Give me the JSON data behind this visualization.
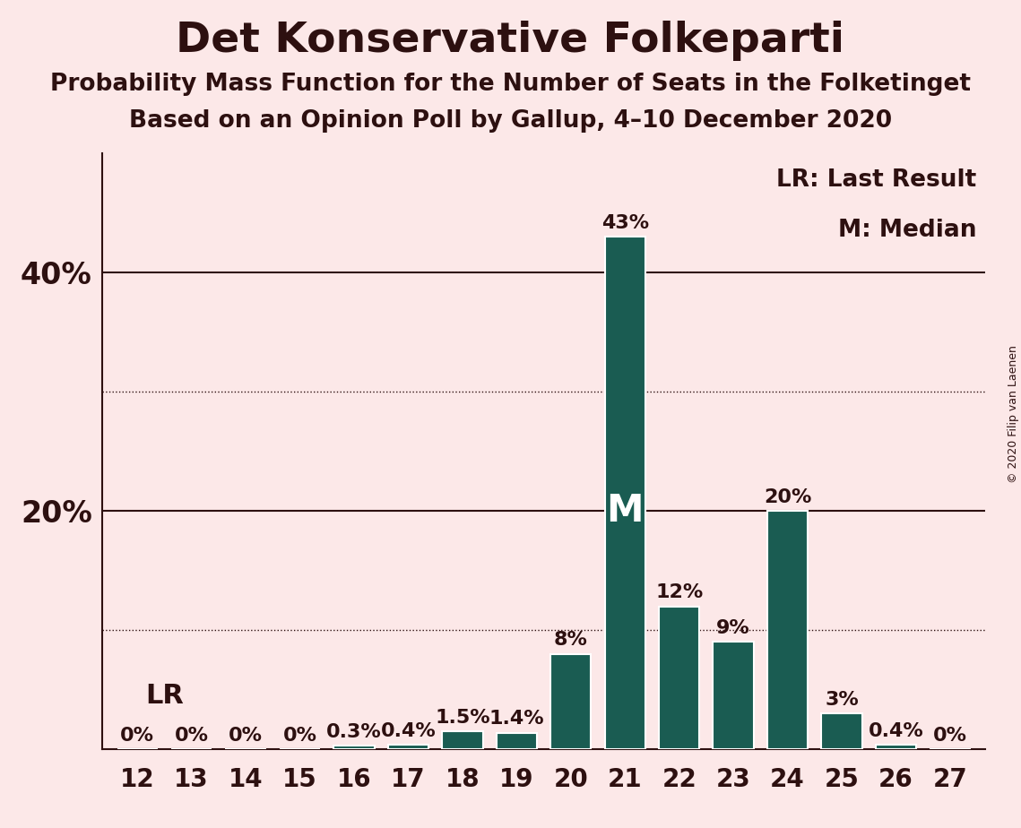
{
  "title": "Det Konservative Folkeparti",
  "subtitle1": "Probability Mass Function for the Number of Seats in the Folketinget",
  "subtitle2": "Based on an Opinion Poll by Gallup, 4–10 December 2020",
  "copyright": "© 2020 Filip van Laenen",
  "seats": [
    12,
    13,
    14,
    15,
    16,
    17,
    18,
    19,
    20,
    21,
    22,
    23,
    24,
    25,
    26,
    27
  ],
  "values": [
    0.0,
    0.0,
    0.0,
    0.0,
    0.3,
    0.4,
    1.5,
    1.4,
    8.0,
    43.0,
    12.0,
    9.0,
    20.0,
    3.0,
    0.4,
    0.0
  ],
  "labels": [
    "0%",
    "0%",
    "0%",
    "0%",
    "0.3%",
    "0.4%",
    "1.5%",
    "1.4%",
    "8%",
    "43%",
    "12%",
    "9%",
    "20%",
    "3%",
    "0.4%",
    "0%"
  ],
  "bar_color": "#1a5c52",
  "background_color": "#fce8e8",
  "text_color": "#2d1010",
  "median_seat": 21,
  "median_label": "M",
  "lr_label": "LR",
  "legend_lr": "LR: Last Result",
  "legend_m": "M: Median",
  "ylim": [
    0,
    50
  ],
  "solid_lines": [
    20,
    40
  ],
  "dotted_lines": [
    10,
    30
  ],
  "bar_width": 0.75,
  "title_fontsize": 34,
  "subtitle_fontsize": 19,
  "label_fontsize": 16,
  "tick_fontsize": 20,
  "legend_fontsize": 19,
  "median_fontsize": 30,
  "lr_fontsize": 22,
  "ytick_fontsize": 24
}
